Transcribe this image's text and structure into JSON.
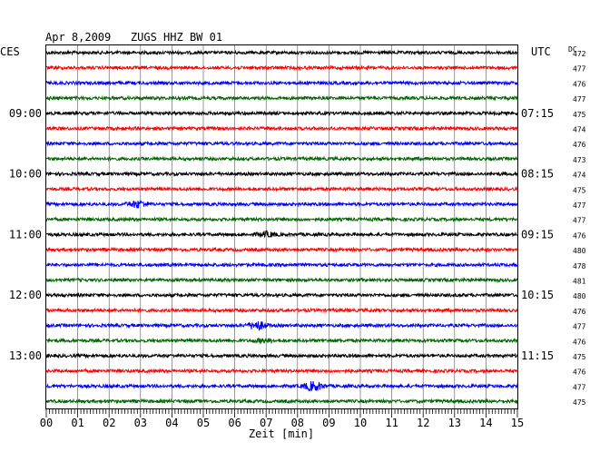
{
  "chart_data": {
    "type": "line",
    "title": "Apr 8,2009   ZUGS HHZ BW 01",
    "left_header": "CES",
    "right_header": "UTC",
    "dc_header": "DC",
    "xlabel": "Zeit [min]",
    "xlim": [
      0,
      15
    ],
    "x_ticks": [
      "00",
      "01",
      "02",
      "03",
      "04",
      "05",
      "06",
      "07",
      "08",
      "09",
      "10",
      "11",
      "12",
      "13",
      "14",
      "15"
    ],
    "local_time_labels": [
      {
        "row": 4,
        "text": "09:00"
      },
      {
        "row": 8,
        "text": "10:00"
      },
      {
        "row": 12,
        "text": "11:00"
      },
      {
        "row": 16,
        "text": "12:00"
      },
      {
        "row": 20,
        "text": "13:00"
      }
    ],
    "utc_time_labels": [
      {
        "row": 4,
        "text": "07:15"
      },
      {
        "row": 8,
        "text": "08:15"
      },
      {
        "row": 12,
        "text": "09:15"
      },
      {
        "row": 16,
        "text": "10:15"
      },
      {
        "row": 20,
        "text": "11:15"
      }
    ],
    "series_colors": [
      "#000000",
      "#ff0000",
      "#0000ff",
      "#006400"
    ],
    "grid": "vertical-minutes",
    "traces": [
      {
        "dc": "472",
        "events": []
      },
      {
        "dc": "477",
        "events": []
      },
      {
        "dc": "476",
        "events": []
      },
      {
        "dc": "477",
        "events": []
      },
      {
        "dc": "475",
        "events": []
      },
      {
        "dc": "474",
        "events": []
      },
      {
        "dc": "476",
        "events": []
      },
      {
        "dc": "473",
        "events": []
      },
      {
        "dc": "474",
        "events": []
      },
      {
        "dc": "475",
        "events": []
      },
      {
        "dc": "477",
        "events": [
          {
            "minute": 2.9,
            "amplitude": 3.5
          }
        ]
      },
      {
        "dc": "477",
        "events": []
      },
      {
        "dc": "476",
        "events": [
          {
            "minute": 7.0,
            "amplitude": 2.5
          }
        ]
      },
      {
        "dc": "480",
        "events": []
      },
      {
        "dc": "478",
        "events": []
      },
      {
        "dc": "481",
        "events": []
      },
      {
        "dc": "480",
        "events": []
      },
      {
        "dc": "476",
        "events": []
      },
      {
        "dc": "477",
        "events": [
          {
            "minute": 6.7,
            "amplitude": 4.5
          }
        ]
      },
      {
        "dc": "476",
        "events": [
          {
            "minute": 6.9,
            "amplitude": 1.8
          }
        ]
      },
      {
        "dc": "475",
        "events": []
      },
      {
        "dc": "476",
        "events": []
      },
      {
        "dc": "477",
        "events": [
          {
            "minute": 8.5,
            "amplitude": 5
          }
        ]
      },
      {
        "dc": "475",
        "events": []
      }
    ]
  }
}
